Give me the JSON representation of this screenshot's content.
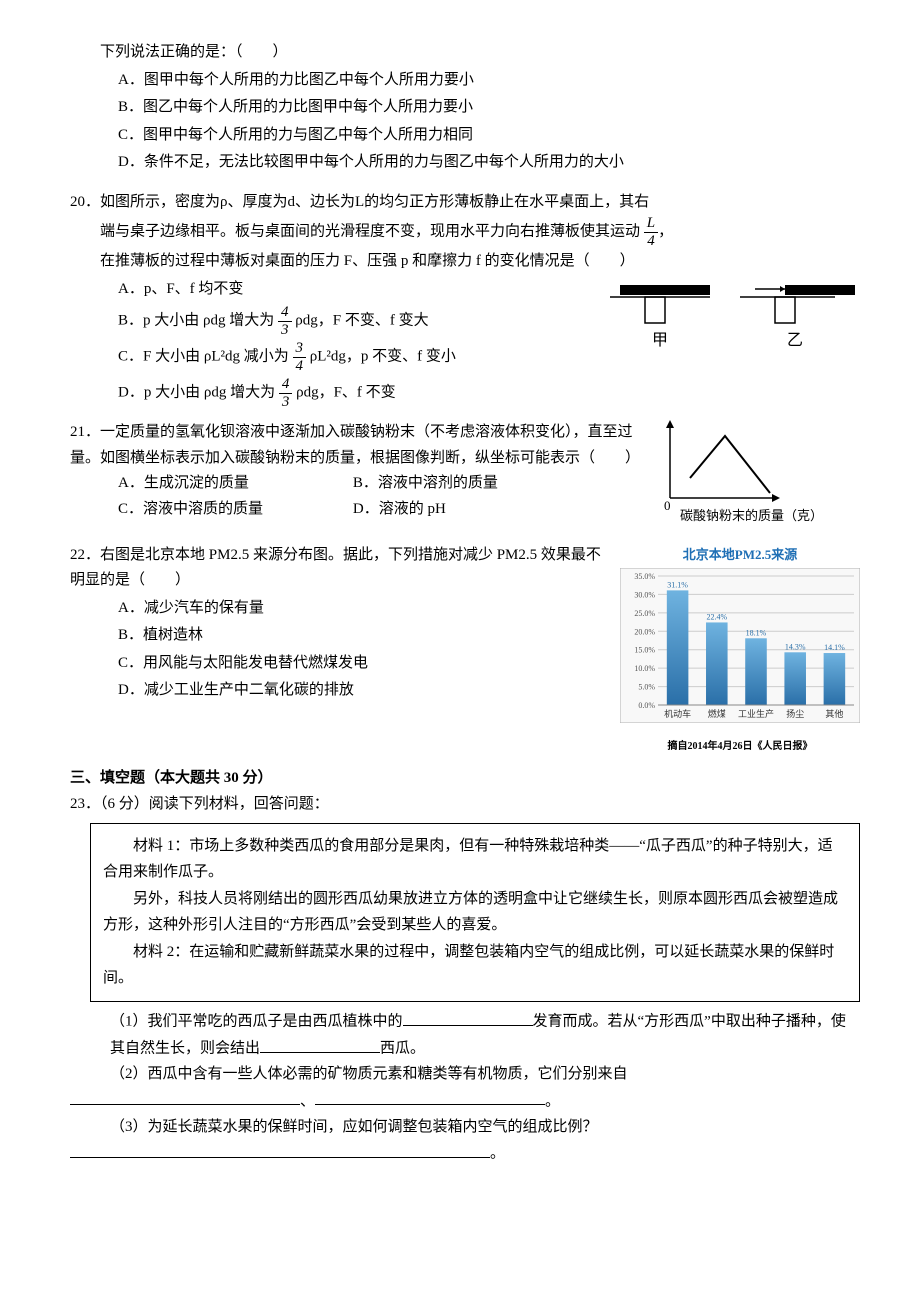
{
  "q_pre": {
    "stem": "下列说法正确的是：（　　）",
    "opts": [
      "A．图甲中每个人所用的力比图乙中每个人所用力要小",
      "B．图乙中每个人所用的力比图甲中每个人所用力要小",
      "C．图甲中每个人所用的力与图乙中每个人所用力相同",
      "D．条件不足，无法比较图甲中每个人所用的力与图乙中每个人所用力的大小"
    ]
  },
  "q20": {
    "num": "20．",
    "stem1": "如图所示，密度为ρ、厚度为d、边长为L的均匀正方形薄板静止在水平桌面上，其右",
    "stem2_pre": "端与桌子边缘相平。板与桌面间的光滑程度不变，现用水平力向右推薄板使其运动",
    "frac": {
      "num": "L",
      "den": "4"
    },
    "stem2_post": "，",
    "stem3": "在推薄板的过程中薄板对桌面的压力 F、压强 p 和摩擦力 f 的变化情况是（　　）",
    "optA": "A．p、F、f 均不变",
    "optB_pre": "B．p 大小由 ρdg 增大为",
    "optB_frac": {
      "num": "4",
      "den": "3"
    },
    "optB_post": "ρdg，F 不变、f 变大",
    "optC_pre": "C．F 大小由 ρL²dg 减小为",
    "optC_frac": {
      "num": "3",
      "den": "4"
    },
    "optC_post": "ρL²dg，p 不变、f 变小",
    "optD_pre": "D．p 大小由 ρdg 增大为",
    "optD_frac": {
      "num": "4",
      "den": "3"
    },
    "optD_post": "ρdg，F、f 不变",
    "fig": {
      "labels": [
        "甲",
        "乙"
      ],
      "label_fontsize": 16,
      "board_color": "#000000",
      "table_stroke": "#000000",
      "arrow_color": "#000000",
      "bg": "#ffffff"
    }
  },
  "q21": {
    "num": "21．",
    "stem": "一定质量的氢氧化钡溶液中逐渐加入碳酸钠粉末（不考虑溶液体积变化），直至过量。如图横坐标表示加入碳酸钠粉末的质量，根据图像判断，纵坐标可能表示（　　）",
    "opts": [
      "A．生成沉淀的质量",
      "B．溶液中溶剂的质量",
      "C．溶液中溶质的质量",
      "D．溶液的 pH"
    ],
    "fig": {
      "origin_label": "0",
      "xlabel": "碳酸钠粉末的质量（克）",
      "axis_color": "#000000",
      "line_color": "#000000",
      "xlabel_fontsize": 13,
      "points": [
        [
          20,
          20
        ],
        [
          55,
          62
        ],
        [
          100,
          5
        ]
      ]
    }
  },
  "q22": {
    "num": "22．",
    "stem": "右图是北京本地 PM2.5 来源分布图。据此，下列措施对减少 PM2.5 效果最不明显的是（　　）",
    "opts": [
      "A．减少汽车的保有量",
      "B．植树造林",
      "C．用风能与太阳能发电替代燃煤发电",
      "D．减少工业生产中二氧化碳的排放"
    ],
    "chart": {
      "type": "bar",
      "title": "北京本地PM2.5来源",
      "title_color": "#1f6fb5",
      "title_fontsize": 13,
      "footer": "摘自2014年4月26日《人民日报》",
      "footer_fontsize": 10,
      "categories": [
        "机动车",
        "燃煤",
        "工业生产",
        "扬尘",
        "其他"
      ],
      "values": [
        31.1,
        22.4,
        18.1,
        14.3,
        14.1
      ],
      "value_labels": [
        "31.1%",
        "22.4%",
        "18.1%",
        "14.3%",
        "14.1%"
      ],
      "bar_color_top": "#6fb3e0",
      "bar_color_bottom": "#2a6fa8",
      "ylim": [
        0,
        35
      ],
      "ytick_step": 5,
      "yticks": [
        "0.0%",
        "5.0%",
        "10.0%",
        "15.0%",
        "20.0%",
        "25.0%",
        "30.0%",
        "35.0%"
      ],
      "grid_color": "#cccccc",
      "border_color": "#b0b0b0",
      "bg": "#f8f8f8",
      "axis_fontsize": 8,
      "cat_fontsize": 9,
      "val_fontsize": 8,
      "bar_width": 0.55
    }
  },
  "section3": "三、填空题（本大题共 30 分）",
  "q23": {
    "num": "23．",
    "lead": "（6 分）阅读下列材料，回答问题：",
    "materials": [
      "材料 1：市场上多数种类西瓜的食用部分是果肉，但有一种特殊栽培种类——“瓜子西瓜”的种子特别大，适合用来制作瓜子。",
      "另外，科技人员将刚结出的圆形西瓜幼果放进立方体的透明盒中让它继续生长，则原本圆形西瓜会被塑造成方形，这种外形引人注目的“方形西瓜”会受到某些人的喜爱。",
      "材料 2：在运输和贮藏新鲜蔬菜水果的过程中，调整包装箱内空气的组成比例，可以延长蔬菜水果的保鲜时间。"
    ],
    "sub1_pre": "（1）我们平常吃的西瓜子是由西瓜植株中的",
    "sub1_mid": "发育而成。若从“方形西瓜”中取出种子播种，使其自然生长，则会结出",
    "sub1_post": "西瓜。",
    "sub2": "（2）西瓜中含有一些人体必需的矿物质元素和糖类等有机物质，它们分别来自",
    "sub2_sep": "、",
    "sub2_end": "。",
    "sub3_q": "（3）为延长蔬菜水果的保鲜时间，应如何调整包装箱内空气的组成比例？",
    "sub3_end": "。",
    "blank_widths": {
      "b1": 130,
      "b2": 120,
      "b3": 230,
      "b4": 230,
      "b5": 420
    }
  }
}
